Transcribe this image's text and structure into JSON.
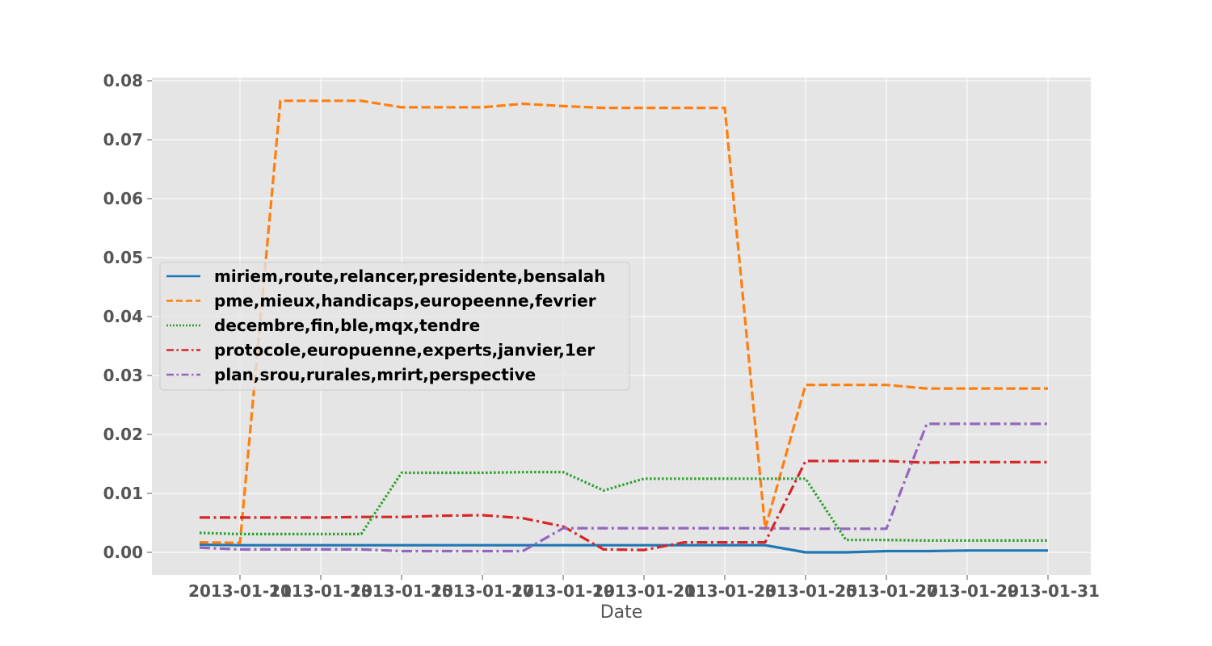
{
  "chart_data": {
    "type": "line",
    "title": "",
    "xlabel": "Date",
    "ylabel": "",
    "ylim": [
      -0.0037,
      0.0805
    ],
    "xlim": [
      "2013-01-08",
      "2013-01-31"
    ],
    "grid": true,
    "legend_position": "center-left",
    "yticks": [
      "0.00",
      "0.01",
      "0.02",
      "0.03",
      "0.04",
      "0.05",
      "0.06",
      "0.07",
      "0.08"
    ],
    "xticks": [
      "2013-01-11",
      "2013-01-13",
      "2013-01-15",
      "2013-01-17",
      "2013-01-19",
      "2013-01-21",
      "2013-01-23",
      "2013-01-25",
      "2013-01-27",
      "2013-01-29",
      "2013-01-31"
    ],
    "xtick_labels": [
      "2013-01-11",
      "2013-01-13",
      "2013-01-15",
      "2013-01-17",
      "2013-01-19",
      "2013-01-21",
      "2013-01-23",
      "2013-01-25",
      "2013-01-27",
      "2013-01-29",
      "2013-01-31"
    ],
    "x": [
      "2013-01-10",
      "2013-01-11",
      "2013-01-12",
      "2013-01-13",
      "2013-01-14",
      "2013-01-15",
      "2013-01-16",
      "2013-01-17",
      "2013-01-18",
      "2013-01-19",
      "2013-01-20",
      "2013-01-21",
      "2013-01-22",
      "2013-01-23",
      "2013-01-24",
      "2013-01-25",
      "2013-01-26",
      "2013-01-27",
      "2013-01-28",
      "2013-01-29",
      "2013-01-30",
      "2013-01-31"
    ],
    "series": [
      {
        "name": "miriem,route,relancer,presidente,bensalah",
        "color": "#1f77b4",
        "dash": "solid",
        "values": [
          0.0013,
          0.0012,
          0.0012,
          0.0012,
          0.0012,
          0.0012,
          0.0012,
          0.0012,
          0.0012,
          0.0012,
          0.0012,
          0.0012,
          0.0012,
          0.0012,
          0.0012,
          0.0,
          0.0,
          0.0002,
          0.0002,
          0.0003,
          0.0003,
          0.0003
        ]
      },
      {
        "name": "pme,mieux,handicaps,europeenne,fevrier",
        "color": "#ff7f0e",
        "dash": "dashed",
        "values": [
          0.0017,
          0.0016,
          0.0766,
          0.0766,
          0.0766,
          0.0755,
          0.0755,
          0.0755,
          0.0761,
          0.0757,
          0.0754,
          0.0754,
          0.0754,
          0.0754,
          0.004,
          0.0284,
          0.0284,
          0.0284,
          0.0278,
          0.0278,
          0.0278,
          0.0278
        ]
      },
      {
        "name": "decembre,fin,ble,mqx,tendre",
        "color": "#2ca02c",
        "dash": "dotted",
        "values": [
          0.0033,
          0.0031,
          0.0031,
          0.0031,
          0.0031,
          0.0135,
          0.0135,
          0.0135,
          0.0136,
          0.0136,
          0.0105,
          0.0125,
          0.0125,
          0.0125,
          0.0125,
          0.0125,
          0.0021,
          0.0021,
          0.002,
          0.002,
          0.002,
          0.002
        ]
      },
      {
        "name": "protocole,europuenne,experts,janvier,1er",
        "color": "#d62728",
        "dash": "dashdot",
        "values": [
          0.0059,
          0.0059,
          0.0059,
          0.0059,
          0.006,
          0.006,
          0.0062,
          0.0063,
          0.0058,
          0.0044,
          0.0005,
          0.0004,
          0.0017,
          0.0017,
          0.0017,
          0.0155,
          0.0155,
          0.0155,
          0.0152,
          0.0153,
          0.0153,
          0.0153
        ]
      },
      {
        "name": "plan,srou,rurales,mrirt,perspective",
        "color": "#9467bd",
        "dash": "dashdot",
        "values": [
          0.0008,
          0.0005,
          0.0005,
          0.0005,
          0.0005,
          0.0002,
          0.0002,
          0.0002,
          0.0002,
          0.0041,
          0.0041,
          0.0041,
          0.0041,
          0.0041,
          0.0041,
          0.004,
          0.004,
          0.004,
          0.0218,
          0.0218,
          0.0218,
          0.0218
        ]
      }
    ]
  },
  "style": {
    "plot_background": "#e5e5e5",
    "grid_color": "#ffffff",
    "tick_label_color": "#555555",
    "legend_background": "#e5e5e5",
    "legend_border": "#cccccc"
  }
}
